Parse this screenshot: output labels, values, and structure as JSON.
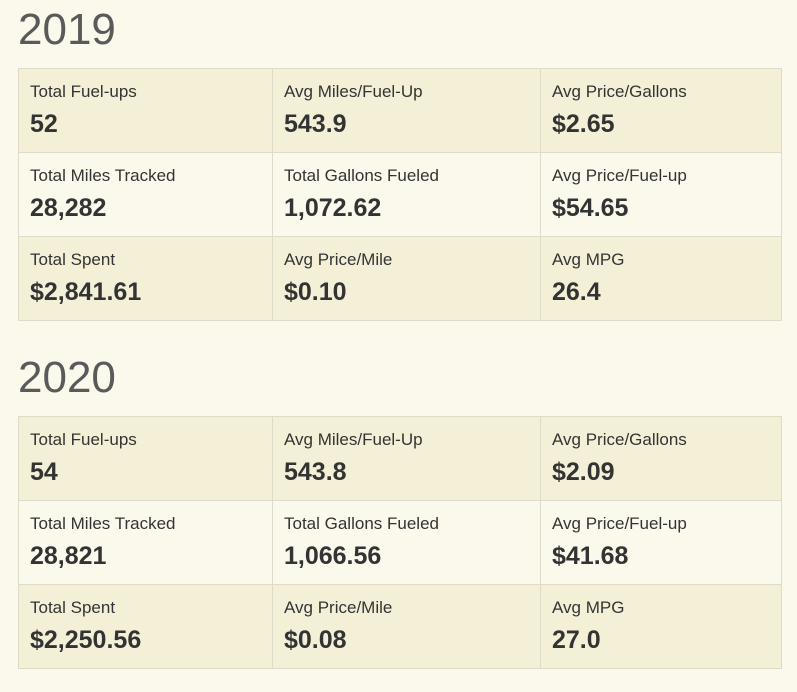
{
  "years": [
    {
      "year": "2019",
      "rows": [
        [
          {
            "label": "Total Fuel-ups",
            "value": "52"
          },
          {
            "label": "Avg Miles/Fuel-Up",
            "value": "543.9"
          },
          {
            "label": "Avg Price/Gallons",
            "value": "$2.65"
          }
        ],
        [
          {
            "label": "Total Miles Tracked",
            "value": "28,282"
          },
          {
            "label": "Total Gallons Fueled",
            "value": "1,072.62"
          },
          {
            "label": "Avg Price/Fuel-up",
            "value": "$54.65"
          }
        ],
        [
          {
            "label": "Total Spent",
            "value": "$2,841.61"
          },
          {
            "label": "Avg Price/Mile",
            "value": "$0.10"
          },
          {
            "label": "Avg MPG",
            "value": "26.4"
          }
        ]
      ]
    },
    {
      "year": "2020",
      "rows": [
        [
          {
            "label": "Total Fuel-ups",
            "value": "54"
          },
          {
            "label": "Avg Miles/Fuel-Up",
            "value": "543.8"
          },
          {
            "label": "Avg Price/Gallons",
            "value": "$2.09"
          }
        ],
        [
          {
            "label": "Total Miles Tracked",
            "value": "28,821"
          },
          {
            "label": "Total Gallons Fueled",
            "value": "1,066.56"
          },
          {
            "label": "Avg Price/Fuel-up",
            "value": "$41.68"
          }
        ],
        [
          {
            "label": "Total Spent",
            "value": "$2,250.56"
          },
          {
            "label": "Avg Price/Mile",
            "value": "$0.08"
          },
          {
            "label": "Avg MPG",
            "value": "27.0"
          }
        ]
      ]
    }
  ]
}
